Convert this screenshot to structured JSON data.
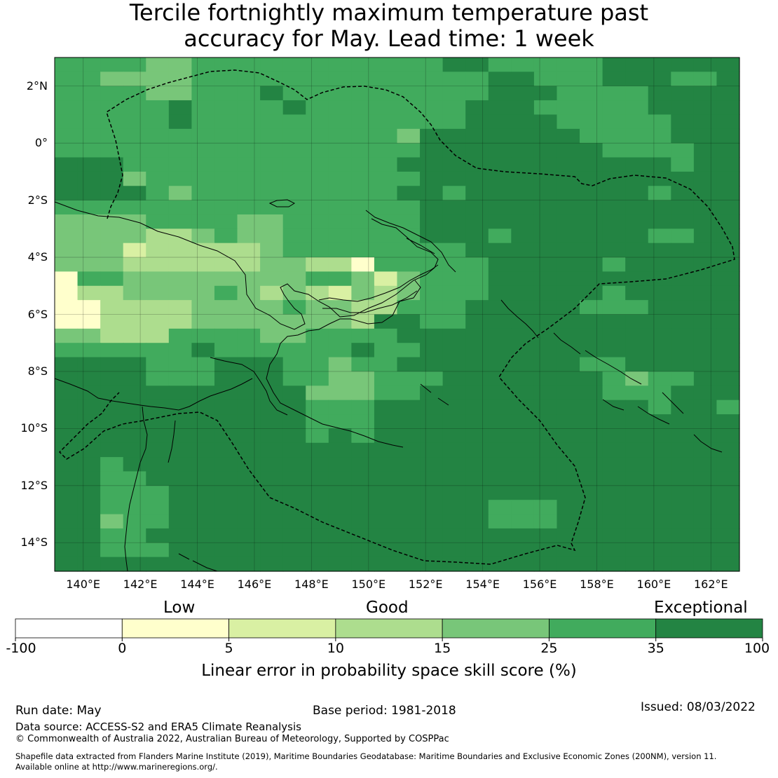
{
  "title_line1": "Tercile fortnightly maximum temperature past",
  "title_line2": "accuracy for May. Lead time: 1 week",
  "map": {
    "lon_range": [
      139,
      163
    ],
    "lat_range": [
      -15,
      3
    ],
    "x_ticks": [
      {
        "value": 140,
        "label": "140°E"
      },
      {
        "value": 142,
        "label": "142°E"
      },
      {
        "value": 144,
        "label": "144°E"
      },
      {
        "value": 146,
        "label": "146°E"
      },
      {
        "value": 148,
        "label": "148°E"
      },
      {
        "value": 150,
        "label": "150°E"
      },
      {
        "value": 152,
        "label": "152°E"
      },
      {
        "value": 154,
        "label": "154°E"
      },
      {
        "value": 156,
        "label": "156°E"
      },
      {
        "value": 158,
        "label": "158°E"
      },
      {
        "value": 160,
        "label": "160°E"
      },
      {
        "value": 162,
        "label": "162°E"
      }
    ],
    "y_ticks": [
      {
        "value": 2,
        "label": "2°N"
      },
      {
        "value": 0,
        "label": "0°"
      },
      {
        "value": -2,
        "label": "2°S"
      },
      {
        "value": -4,
        "label": "4°S"
      },
      {
        "value": -6,
        "label": "6°S"
      },
      {
        "value": -8,
        "label": "8°S"
      },
      {
        "value": -10,
        "label": "10°S"
      },
      {
        "value": -12,
        "label": "12°S"
      },
      {
        "value": -14,
        "label": "14°S"
      }
    ],
    "grid_note": "categorical skill classes per 0.83° cell; 1=0-5,2=5-10,3=10-15,4=15-25,5=25-35,6=35-100",
    "grid_rows": [
      "555544555555555556655555666666",
      "554444555555555555566555666556",
      "555544555655555555566655556666",
      "555556555565555555666555556666",
      "555556555555555555666655555666",
      "555555555555555466666665555666",
      "555555555555555566666666555566",
      "666555555555555666666666666566",
      "666455555555555566666666666666",
      "666654555555555665666666665666",
      "555555555555555566666666666666",
      "444455554455555566666666666666",
      "444433454455555566656666665566",
      "444233333455555555666666666666",
      "444333333443315555566666566666",
      "155444444445542455566666666666",
      "133444454343243455566666566666",
      "113333444454433555666665556666",
      "113333444444436655666666666666",
      "443335555445555666666666666666",
      "555555655555565566666666666666",
      "666655566655455666666665566666",
      "666655566655445556666666545566",
      "666666666664445566666666555666",
      "666666666665556666666666665665",
      "666666666665556666666666666666",
      "666666666665656666666666666666",
      "666666666666666666666666666666",
      "665666666666666666666666666666",
      "665566666666666666666666666666",
      "665556666666666666666666666666",
      "665556666666666666655566666666",
      "664556666666666666655566666666",
      "665566666666666666666666666666",
      "665556666666666666666666666666",
      "666666666666666666666666666666"
    ]
  },
  "colorbar": {
    "colors": [
      "#ffffff",
      "#ffffcc",
      "#d9f0a3",
      "#addd8e",
      "#78c679",
      "#41ab5d",
      "#238443"
    ],
    "tick_labels": [
      "-100",
      "0",
      "5",
      "10",
      "15",
      "25",
      "35",
      "100"
    ],
    "category_labels": [
      {
        "text": "Low",
        "position": "left"
      },
      {
        "text": "Good",
        "position": "center"
      },
      {
        "text": "Exceptional",
        "position": "right"
      }
    ],
    "label": "Linear error in probability space skill score (%)"
  },
  "footer": {
    "run_date": "Run date: May",
    "base_period": "Base period: 1981-2018",
    "issued": "Issued: 08/03/2022",
    "data_source": "Data source: ACCESS-S2 and ERA5 Climate Reanalysis",
    "copyright": "© Commonwealth of Australia 2022, Australian Bureau of Meteorology, Supported by COSPPac",
    "shapefile_line1": "Shapefile data extracted from Flanders Marine Institute (2019), Maritime Boundaries Geodatabase: Maritime Boundaries and Exclusive Economic Zones (200NM), version 11.",
    "shapefile_line2": "Available online at http://www.marineregions.org/."
  }
}
